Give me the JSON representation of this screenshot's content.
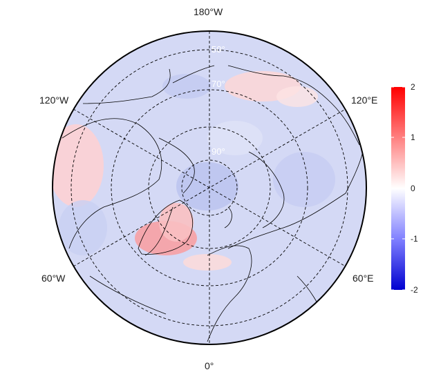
{
  "map": {
    "projection": "north polar stereographic",
    "lon_labels": {
      "top": "180°W",
      "bottom": "0°",
      "upper_left": "120°W",
      "upper_right": "120°E",
      "lower_left": "60°W",
      "lower_right": "60°E"
    },
    "lat_labels": {
      "lat50": "50°",
      "lat70": "70°",
      "lat90": "90°"
    },
    "colors": {
      "low": "#0000d0",
      "mid": "#ffffff",
      "high": "#ff0000"
    }
  },
  "colorbar": {
    "ticks": [
      "2",
      "1",
      "0",
      "-1",
      "-2"
    ],
    "min": -2,
    "max": 2
  }
}
